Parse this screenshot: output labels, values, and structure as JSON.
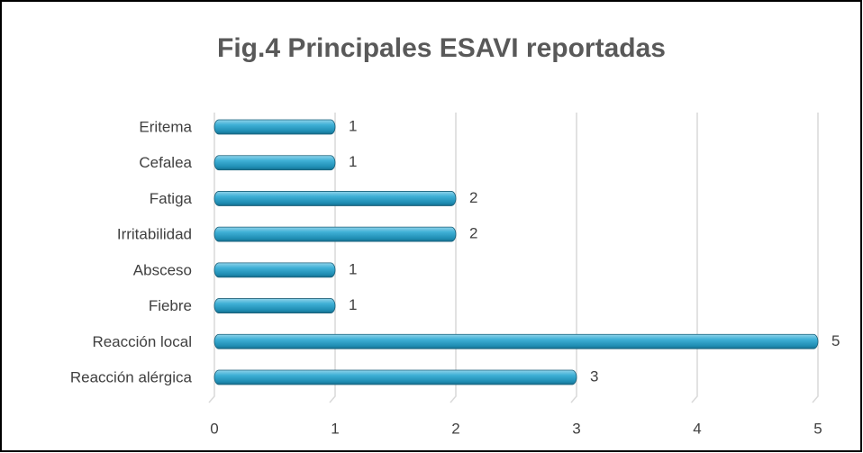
{
  "chart_data": {
    "type": "bar",
    "orientation": "horizontal",
    "title": "Fig.4 Principales ESAVI reportadas",
    "categories": [
      "Reacción alérgica",
      "Reacción local",
      "Fiebre",
      "Absceso",
      "Irritabilidad",
      "Fatiga",
      "Cefalea",
      "Eritema"
    ],
    "values": [
      3,
      5,
      1,
      1,
      2,
      2,
      1,
      1
    ],
    "color": "#2e9fc4",
    "xlim": [
      0,
      5
    ],
    "xticks": [
      0,
      1,
      2,
      3,
      4,
      5
    ],
    "grid": true
  }
}
